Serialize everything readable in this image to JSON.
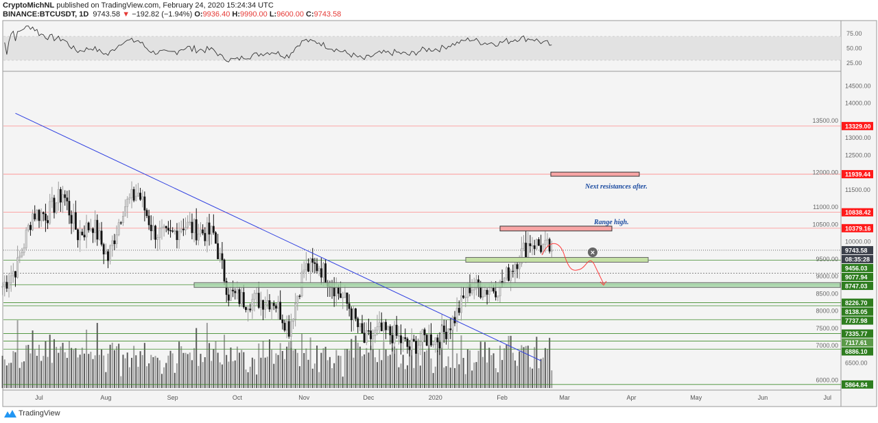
{
  "header": {
    "author": "CryptoMichNL",
    "published": "published on TradingView.com, February 24, 2020 15:24:34 UTC",
    "symbol": "BINANCE:BTCUSDT, 1D",
    "last": "9743.58",
    "change": "−192.82 (−1.94%)",
    "o_label": "O:",
    "o": "9936.40",
    "h_label": "H:",
    "h": "9990.00",
    "l_label": "L:",
    "l": "9600.00",
    "c_label": "C:",
    "c": "9743.58"
  },
  "footer": {
    "brand": "TradingView"
  },
  "chart_data": {
    "type": "candlestick",
    "symbol": "BTCUSDT",
    "interval": "1D",
    "start_date": "2019-06-14",
    "weekly_closes": [
      8700,
      9300,
      10800,
      10800,
      11400,
      10200,
      10500,
      9500,
      11000,
      11400,
      10300,
      10100,
      10500,
      10300,
      10200,
      8500,
      8300,
      8300,
      8300,
      7500,
      9200,
      9300,
      8700,
      8100,
      7100,
      7400,
      7300,
      6900,
      7200,
      7200,
      7800,
      8700,
      8600,
      8700,
      9400,
      10000,
      9800,
      9743.58
    ],
    "price_axis": {
      "min": 5700,
      "max": 14800,
      "ticks": [
        6000,
        6500,
        7000,
        7500,
        8000,
        8500,
        9000,
        9500,
        10000,
        10500,
        11000,
        11500,
        12000,
        12500,
        13000,
        13500,
        14000,
        14500
      ]
    },
    "time_axis": [
      "Jul",
      "Aug",
      "Sep",
      "Oct",
      "Nov",
      "Dec",
      "2020",
      "Feb",
      "Mar",
      "Apr",
      "May",
      "Jun",
      "Jul"
    ],
    "rsi": {
      "ticks": [
        "75.00",
        "50.00",
        "25.00"
      ],
      "upper": 70,
      "lower": 30
    },
    "resistance_levels": [
      "13329.00",
      "11939.44",
      "10838.42",
      "10379.16"
    ],
    "support_levels": [
      "9456.03",
      "9077.94",
      "8747.03",
      "8226.70",
      "8138.05",
      "7737.98",
      "7335.77",
      "7117.61",
      "6886.10",
      "5864.84"
    ],
    "current_price": "9743.58",
    "countdown": "08:35:28",
    "annotations": [
      "Next resistances after.",
      "Range high."
    ],
    "trendline": {
      "from": [
        "2019-06-20",
        13700
      ],
      "to": [
        "2020-02-19",
        6550
      ]
    },
    "colors": {
      "resistance": "#ff1a1a",
      "support": "#2e7d1f",
      "trendline": "#2d3ee0",
      "annotation": "#1a4aa0"
    }
  }
}
